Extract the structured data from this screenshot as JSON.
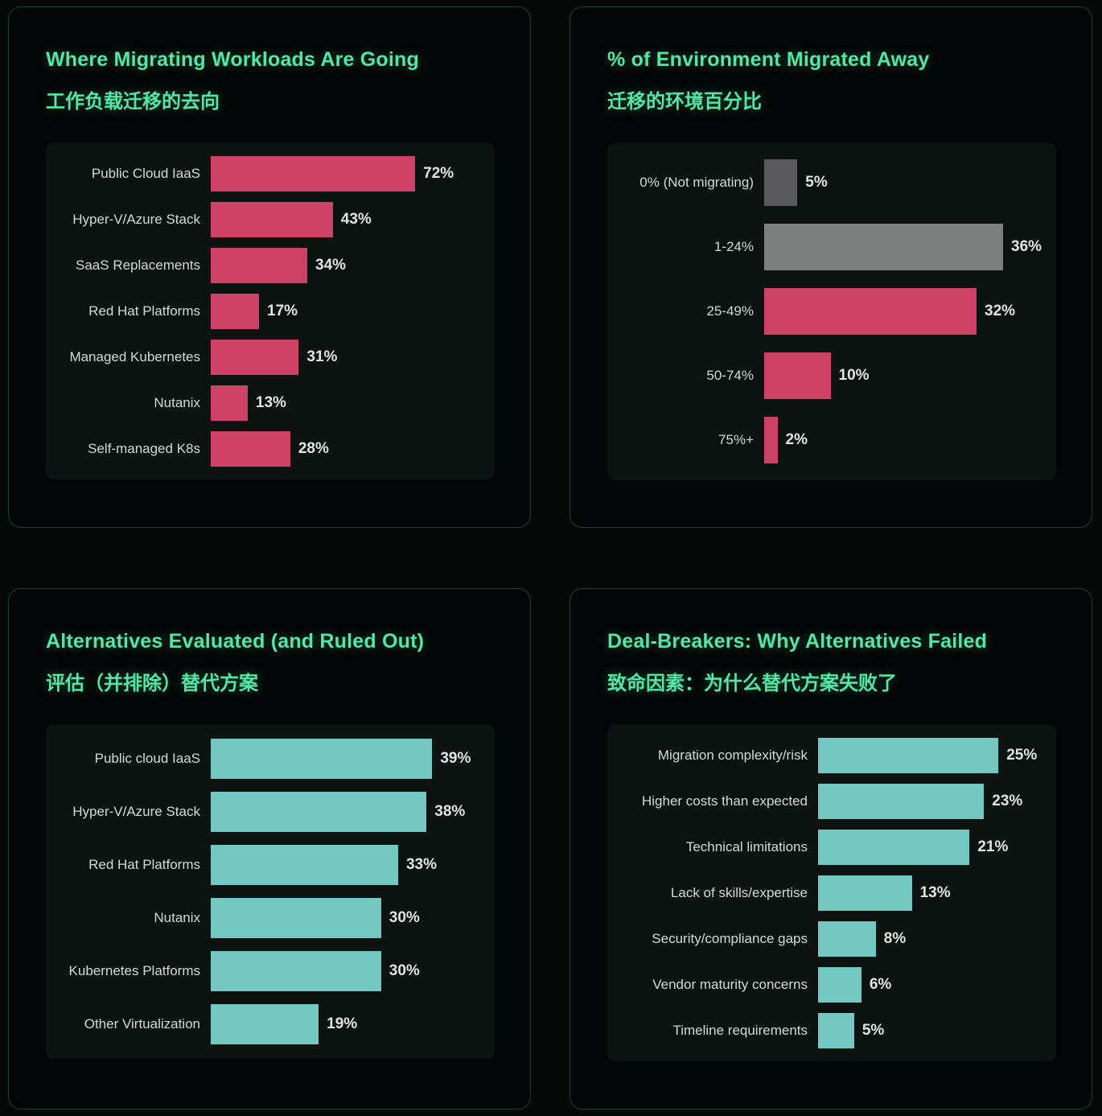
{
  "theme": {
    "page_bg": "#050907",
    "card_bg": "#030606",
    "card_border": "#1c4336",
    "chart_bg": "#0c1310",
    "title_green": "#55e5a5",
    "label_gray": "#d6d8d6",
    "value_white": "#e3e4e2",
    "bar_pink": "#cd4266",
    "bar_teal": "#74c8c2",
    "bar_gray_dark": "#5a5a5c",
    "bar_gray_light": "#7e807f"
  },
  "chart_data": [
    {
      "type": "bar",
      "orientation": "horizontal",
      "title": "Where Migrating Workloads Are Going",
      "subtitle_zh": "工作负载迁移的去向",
      "categories": [
        "Public Cloud IaaS",
        "Hyper-V/Azure Stack",
        "SaaS Replacements",
        "Red Hat Platforms",
        "Managed Kubernetes",
        "Nutanix",
        "Self-managed K8s"
      ],
      "values": [
        72,
        43,
        34,
        17,
        31,
        13,
        28
      ],
      "value_suffix": "%",
      "bar_color": "#cd4266",
      "xlim": [
        0,
        100
      ],
      "grid": false,
      "legend": false
    },
    {
      "type": "bar",
      "orientation": "horizontal",
      "title": "% of Environment Migrated Away",
      "subtitle_zh": "迁移的环境百分比",
      "categories": [
        "0% (Not migrating)",
        "1-24%",
        "25-49%",
        "50-74%",
        "75%+"
      ],
      "values": [
        5,
        36,
        32,
        10,
        2
      ],
      "value_suffix": "%",
      "bar_colors": [
        "#5a5a5c",
        "#7e807f",
        "#cd4266",
        "#cd4266",
        "#cd4266"
      ],
      "xlim": [
        0,
        44
      ],
      "grid": false,
      "legend": false
    },
    {
      "type": "bar",
      "orientation": "horizontal",
      "title": "Alternatives Evaluated (and Ruled Out)",
      "subtitle_zh": "评估（并排除）替代方案",
      "categories": [
        "Public cloud IaaS",
        "Hyper-V/Azure Stack",
        "Red Hat Platforms",
        "Nutanix",
        "Kubernetes Platforms",
        "Other Virtualization"
      ],
      "values": [
        39,
        38,
        33,
        30,
        30,
        19
      ],
      "value_suffix": "%",
      "bar_color": "#74c8c2",
      "xlim": [
        0,
        50
      ],
      "grid": false,
      "legend": false
    },
    {
      "type": "bar",
      "orientation": "horizontal",
      "title": "Deal-Breakers: Why Alternatives Failed",
      "subtitle_zh": "致命因素：为什么替代方案失败了",
      "categories": [
        "Migration complexity/risk",
        "Higher costs than expected",
        "Technical limitations",
        "Lack of skills/expertise",
        "Security/compliance gaps",
        "Vendor maturity concerns",
        "Timeline requirements"
      ],
      "values": [
        25,
        23,
        21,
        13,
        8,
        6,
        5
      ],
      "value_suffix": "%",
      "bar_color": "#74c8c2",
      "xlim": [
        0,
        33
      ],
      "grid": false,
      "legend": false
    }
  ]
}
